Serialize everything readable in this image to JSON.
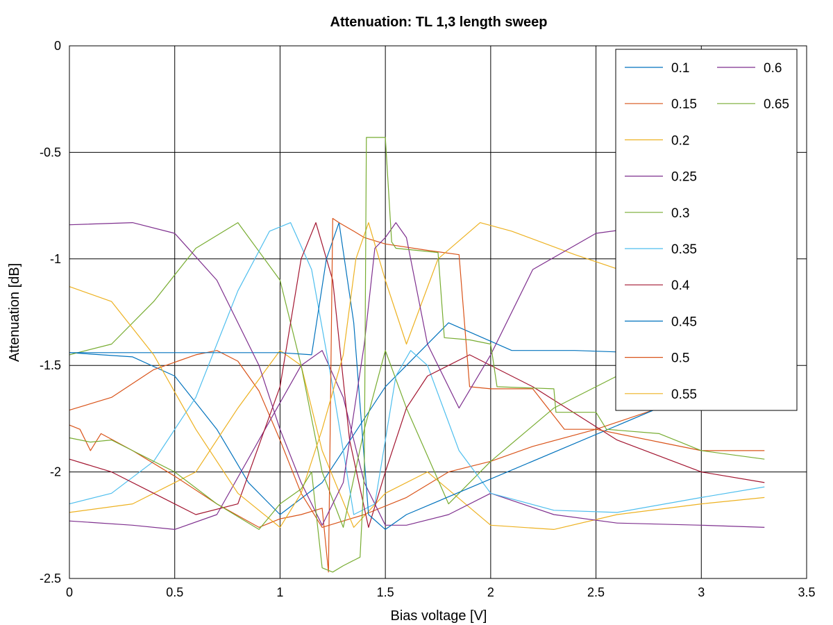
{
  "chart_data": {
    "type": "line",
    "title": "Attenuation: TL 1,3 length sweep",
    "xlabel": "Bias voltage [V]",
    "ylabel": "Attenuation [dB]",
    "xlim": [
      0,
      3.5
    ],
    "ylim": [
      -2.5,
      0
    ],
    "xticks": [
      "0",
      "0.5",
      "1",
      "1.5",
      "2",
      "2.5",
      "3",
      "3.5"
    ],
    "yticks": [
      "0",
      "-0.5",
      "-1",
      "-1.5",
      "-2",
      "-2.5"
    ],
    "grid": true,
    "legend_position": "top-right",
    "colors": [
      "#0072bd",
      "#d95319",
      "#edb120",
      "#7e2f8e",
      "#77ac30",
      "#4dbeee",
      "#a2142f"
    ],
    "series": [
      {
        "name": "0.1",
        "x": [
          0,
          0.3,
          0.5,
          0.7,
          0.85,
          1.0,
          1.2,
          1.5,
          1.8,
          2.1,
          2.4,
          2.7,
          3.0,
          3.3
        ],
        "y": [
          -1.44,
          -1.46,
          -1.55,
          -1.8,
          -2.05,
          -2.2,
          -2.05,
          -1.6,
          -1.3,
          -1.43,
          -1.43,
          -1.44,
          -1.46,
          -1.49
        ]
      },
      {
        "name": "0.15",
        "x": [
          0,
          0.2,
          0.4,
          0.6,
          0.7,
          0.8,
          0.9,
          1.0,
          1.1,
          1.2,
          1.4,
          1.6,
          1.8,
          2.0,
          2.2,
          2.5,
          2.8,
          3.1,
          3.3
        ],
        "y": [
          -1.71,
          -1.65,
          -1.52,
          -1.45,
          -1.43,
          -1.48,
          -1.62,
          -1.85,
          -2.1,
          -2.26,
          -2.2,
          -2.12,
          -2.0,
          -1.95,
          -1.88,
          -1.8,
          -1.7,
          -1.65,
          -1.61
        ]
      },
      {
        "name": "0.2",
        "x": [
          0,
          0.3,
          0.6,
          0.8,
          1.0,
          1.1,
          1.2,
          1.35,
          1.5,
          1.7,
          2.0,
          2.3,
          2.6,
          3.0,
          3.3
        ],
        "y": [
          -2.19,
          -2.15,
          -2.0,
          -1.7,
          -1.43,
          -1.5,
          -1.9,
          -2.26,
          -2.1,
          -2.0,
          -2.25,
          -2.27,
          -2.2,
          -2.15,
          -2.12
        ]
      },
      {
        "name": "0.25",
        "x": [
          0,
          0.3,
          0.5,
          0.7,
          0.9,
          1.1,
          1.2,
          1.3,
          1.4,
          1.5,
          1.6,
          1.8,
          2.0,
          2.3,
          2.6,
          3.0,
          3.3
        ],
        "y": [
          -2.23,
          -2.25,
          -2.27,
          -2.2,
          -1.85,
          -1.5,
          -1.43,
          -1.65,
          -2.05,
          -2.25,
          -2.25,
          -2.2,
          -2.1,
          -2.2,
          -2.24,
          -2.25,
          -2.26
        ]
      },
      {
        "name": "0.3",
        "x": [
          0,
          0.2,
          0.4,
          0.6,
          0.8,
          1.0,
          1.1,
          1.2,
          1.3,
          1.4,
          1.5,
          1.6,
          1.8,
          2.0,
          2.3,
          2.6,
          3.0,
          3.3
        ],
        "y": [
          -1.45,
          -1.4,
          -1.2,
          -0.95,
          -0.83,
          -1.1,
          -1.5,
          -2.0,
          -2.26,
          -1.8,
          -1.43,
          -1.7,
          -2.15,
          -1.95,
          -1.7,
          -1.55,
          -1.4,
          -1.27
        ]
      },
      {
        "name": "0.35",
        "x": [
          0,
          0.2,
          0.4,
          0.6,
          0.8,
          0.95,
          1.05,
          1.15,
          1.25,
          1.35,
          1.45,
          1.55,
          1.62,
          1.7,
          1.85,
          2.0,
          2.3,
          2.6,
          3.0,
          3.3
        ],
        "y": [
          -2.15,
          -2.1,
          -1.95,
          -1.65,
          -1.15,
          -0.87,
          -0.83,
          -1.05,
          -1.6,
          -2.2,
          -2.15,
          -1.55,
          -1.43,
          -1.5,
          -1.9,
          -2.1,
          -2.18,
          -2.19,
          -2.12,
          -2.07
        ]
      },
      {
        "name": "0.4",
        "x": [
          0,
          0.2,
          0.4,
          0.6,
          0.8,
          1.0,
          1.1,
          1.17,
          1.25,
          1.33,
          1.42,
          1.5,
          1.6,
          1.7,
          1.9,
          2.2,
          2.6,
          3.0,
          3.3
        ],
        "y": [
          -1.94,
          -2.0,
          -2.1,
          -2.2,
          -2.15,
          -1.6,
          -1.0,
          -0.83,
          -1.1,
          -1.85,
          -2.26,
          -2.0,
          -1.7,
          -1.55,
          -1.45,
          -1.6,
          -1.85,
          -2.0,
          -2.05
        ]
      },
      {
        "name": "0.45",
        "x": [
          0,
          1.0,
          1.15,
          1.22,
          1.28,
          1.35,
          1.42,
          1.5,
          1.6,
          3.3
        ],
        "y": [
          -1.44,
          -1.44,
          -1.45,
          -1.0,
          -0.83,
          -1.3,
          -2.2,
          -2.27,
          -2.2,
          -1.49
        ]
      },
      {
        "name": "0.5",
        "x": [
          0,
          0.05,
          0.1,
          0.15,
          0.3,
          0.5,
          0.7,
          0.9,
          1.0,
          1.1,
          1.2,
          1.23,
          1.25,
          1.28,
          1.35,
          1.4,
          1.5,
          1.7,
          1.85,
          1.9,
          2.0,
          2.2,
          2.35,
          2.5,
          2.8,
          3.0,
          3.3
        ],
        "y": [
          -1.78,
          -1.8,
          -1.9,
          -1.82,
          -1.9,
          -2.02,
          -2.15,
          -2.26,
          -2.22,
          -2.2,
          -2.17,
          -2.47,
          -0.81,
          -0.83,
          -0.87,
          -0.9,
          -0.93,
          -0.96,
          -0.98,
          -1.6,
          -1.61,
          -1.61,
          -1.8,
          -1.8,
          -1.86,
          -1.9,
          -1.9
        ]
      },
      {
        "name": "0.55",
        "x": [
          0,
          0.2,
          0.4,
          0.6,
          0.8,
          1.0,
          1.1,
          1.2,
          1.3,
          1.36,
          1.42,
          1.5,
          1.6,
          1.75,
          1.95,
          2.1,
          2.4,
          2.7,
          3.0,
          3.3
        ],
        "y": [
          -1.13,
          -1.2,
          -1.45,
          -1.8,
          -2.1,
          -2.26,
          -2.1,
          -1.8,
          -1.45,
          -1.0,
          -0.83,
          -1.1,
          -1.4,
          -1.0,
          -0.83,
          -0.87,
          -0.98,
          -1.08,
          -1.17,
          -1.25
        ]
      },
      {
        "name": "0.6",
        "x": [
          0,
          0.3,
          0.5,
          0.7,
          0.9,
          1.0,
          1.1,
          1.2,
          1.3,
          1.4,
          1.45,
          1.5,
          1.55,
          1.6,
          1.7,
          1.85,
          2.0,
          2.2,
          2.5,
          2.8,
          3.1,
          3.3
        ],
        "y": [
          -0.84,
          -0.83,
          -0.88,
          -1.1,
          -1.5,
          -1.8,
          -2.05,
          -2.25,
          -2.05,
          -1.4,
          -0.95,
          -0.9,
          -0.83,
          -0.9,
          -1.4,
          -1.7,
          -1.45,
          -1.05,
          -0.88,
          -0.84,
          -0.83,
          -0.83
        ]
      },
      {
        "name": "0.65",
        "x": [
          0,
          0.1,
          0.2,
          0.3,
          0.4,
          0.5,
          0.7,
          0.9,
          1.0,
          1.1,
          1.15,
          1.2,
          1.25,
          1.3,
          1.38,
          1.4,
          1.41,
          1.5,
          1.53,
          1.55,
          1.75,
          1.78,
          1.9,
          2.0,
          2.03,
          2.3,
          2.31,
          2.5,
          2.55,
          2.8,
          2.9,
          3.0,
          3.3
        ],
        "y": [
          -1.84,
          -1.86,
          -1.85,
          -1.9,
          -1.95,
          -2.0,
          -2.15,
          -2.27,
          -2.15,
          -2.08,
          -2.0,
          -2.45,
          -2.47,
          -2.44,
          -2.4,
          -2.0,
          -0.43,
          -0.43,
          -0.92,
          -0.95,
          -0.97,
          -1.37,
          -1.38,
          -1.4,
          -1.6,
          -1.61,
          -1.72,
          -1.72,
          -1.8,
          -1.82,
          -1.86,
          -1.9,
          -1.94
        ]
      }
    ]
  }
}
